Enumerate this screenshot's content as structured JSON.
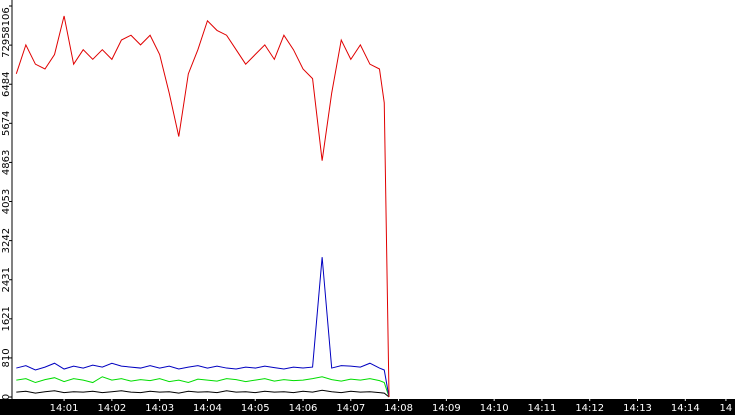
{
  "chart_data": {
    "type": "line",
    "x": [
      0,
      0.2,
      0.4,
      0.6,
      0.8,
      1.0,
      1.2,
      1.4,
      1.6,
      1.8,
      2.0,
      2.2,
      2.4,
      2.6,
      2.8,
      3.0,
      3.2,
      3.4,
      3.6,
      3.8,
      4.0,
      4.2,
      4.4,
      4.6,
      4.8,
      5.0,
      5.2,
      5.4,
      5.6,
      5.8,
      6.0,
      6.2,
      6.4,
      6.6,
      6.8,
      7.0,
      7.2,
      7.4,
      7.6,
      7.7,
      7.8
    ],
    "series": [
      {
        "color": "#e00000",
        "values": [
          6700,
          7300,
          6900,
          6800,
          7100,
          7900,
          6900,
          7200,
          7000,
          7200,
          7000,
          7400,
          7500,
          7300,
          7500,
          7100,
          6300,
          5400,
          6700,
          7200,
          7800,
          7600,
          7500,
          7200,
          6900,
          7100,
          7300,
          7000,
          7500,
          7200,
          6800,
          6600,
          4900,
          6300,
          7400,
          7000,
          7300,
          6900,
          6800,
          6100,
          0
        ]
      },
      {
        "color": "#0000c0",
        "values": [
          600,
          650,
          560,
          620,
          700,
          580,
          640,
          600,
          660,
          620,
          700,
          640,
          620,
          600,
          650,
          600,
          640,
          580,
          620,
          650,
          600,
          640,
          600,
          580,
          620,
          600,
          640,
          610,
          580,
          620,
          600,
          620,
          2900,
          600,
          650,
          640,
          620,
          700,
          600,
          560,
          0
        ]
      },
      {
        "color": "#00dd00",
        "values": [
          350,
          380,
          300,
          360,
          400,
          320,
          380,
          350,
          300,
          420,
          350,
          380,
          330,
          360,
          340,
          380,
          320,
          350,
          300,
          370,
          350,
          330,
          380,
          360,
          320,
          350,
          380,
          330,
          360,
          340,
          350,
          380,
          420,
          360,
          330,
          370,
          350,
          380,
          340,
          300,
          0
        ]
      },
      {
        "color": "#000000",
        "values": [
          100,
          120,
          80,
          110,
          130,
          90,
          110,
          100,
          120,
          90,
          110,
          130,
          100,
          90,
          120,
          100,
          110,
          80,
          120,
          100,
          110,
          90,
          130,
          100,
          110,
          90,
          120,
          100,
          110,
          90,
          120,
          100,
          140,
          110,
          90,
          120,
          100,
          110,
          90,
          80,
          0
        ]
      }
    ],
    "xlim": [
      -0.09,
      15.04
    ],
    "xticks": [
      {
        "value": 1,
        "label": "14:01"
      },
      {
        "value": 2,
        "label": "14:02"
      },
      {
        "value": 3,
        "label": "14:03"
      },
      {
        "value": 4,
        "label": "14:04"
      },
      {
        "value": 5,
        "label": "14:05"
      },
      {
        "value": 6,
        "label": "14:06"
      },
      {
        "value": 7,
        "label": "14:07"
      },
      {
        "value": 8,
        "label": "14:08"
      },
      {
        "value": 9,
        "label": "14:09"
      },
      {
        "value": 10,
        "label": "14:10"
      },
      {
        "value": 11,
        "label": "14:11"
      },
      {
        "value": 12,
        "label": "14:12"
      },
      {
        "value": 13,
        "label": "14:13"
      },
      {
        "value": 14,
        "label": "14:14"
      },
      {
        "value": 14.85,
        "label": "14"
      }
    ],
    "ylim": [
      0,
      8106
    ],
    "yticks": [
      0,
      810,
      1621,
      2431,
      3242,
      4053,
      4863,
      5674,
      6484,
      7295,
      8106
    ]
  }
}
